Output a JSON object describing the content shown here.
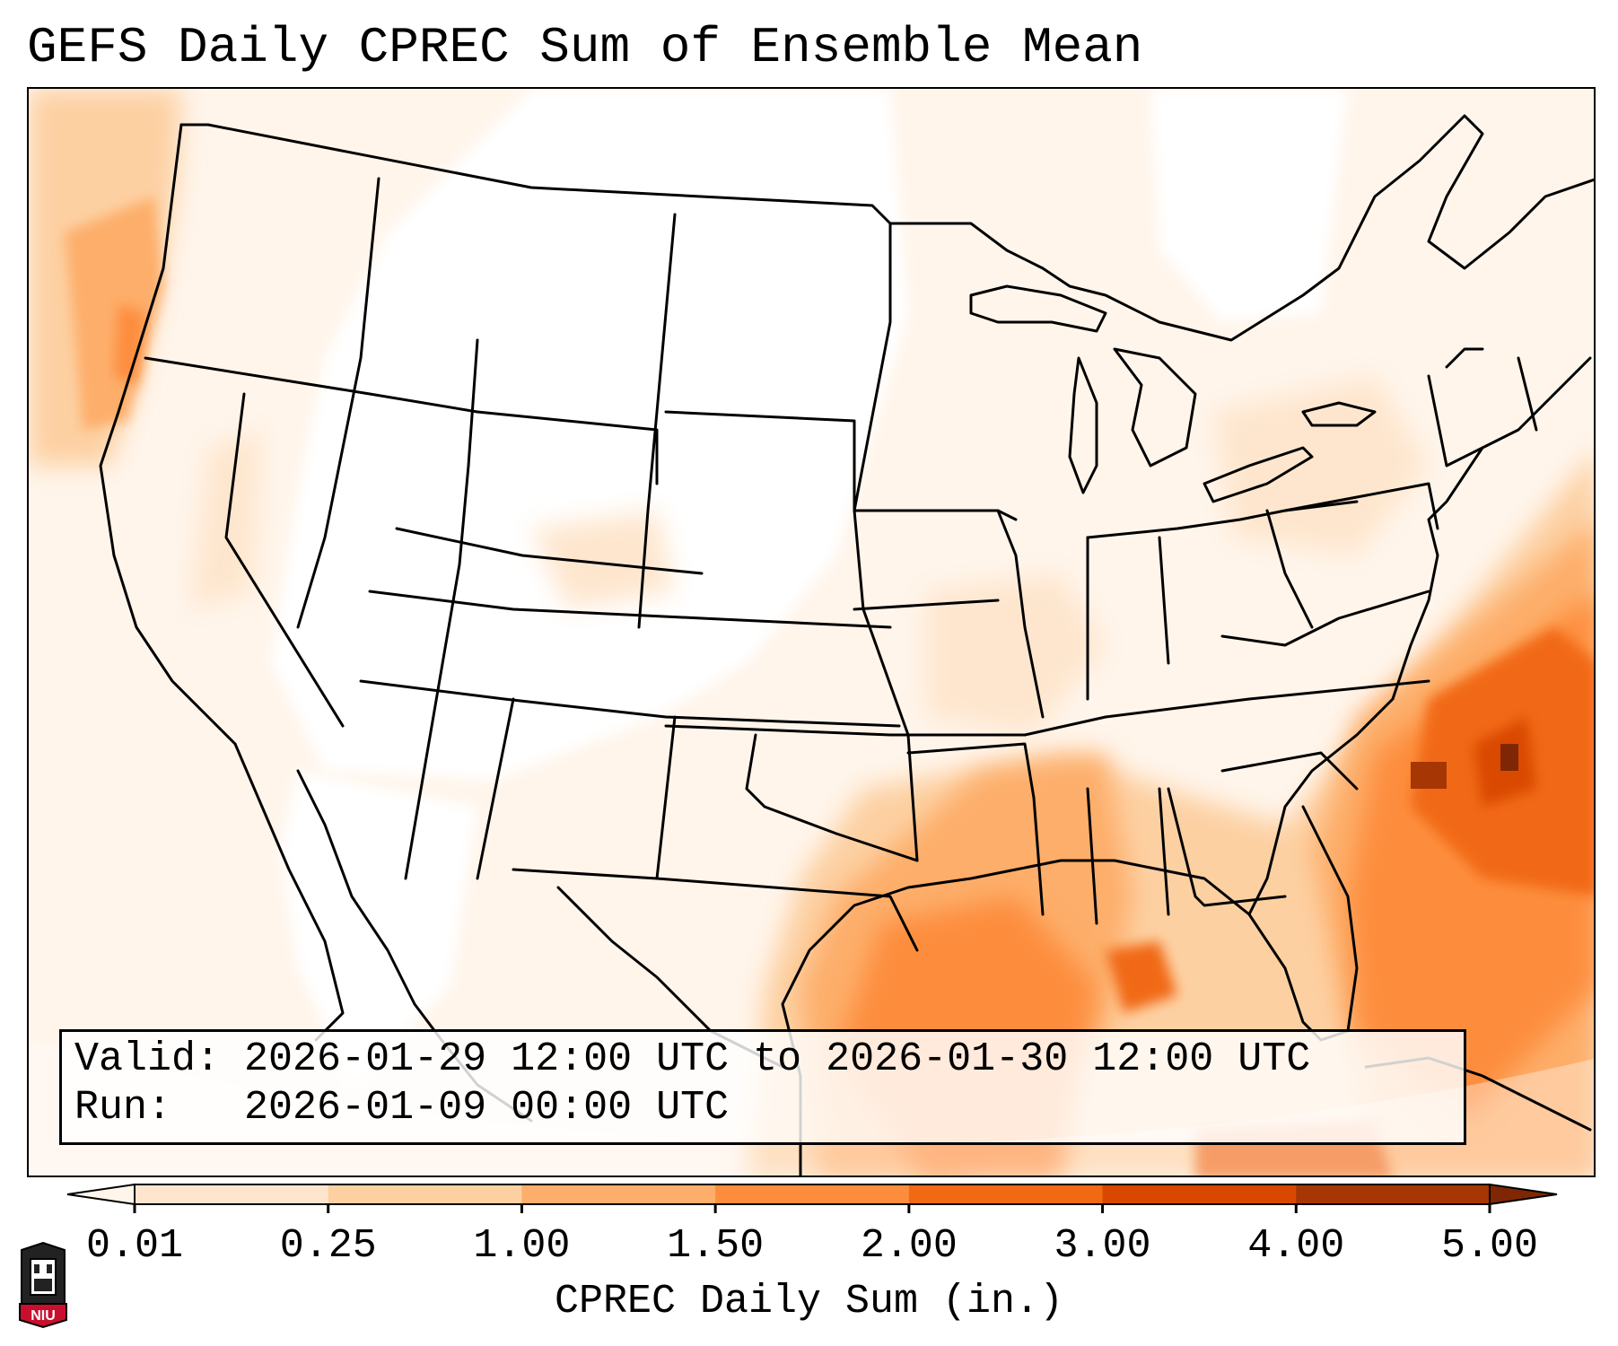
{
  "title": "GEFS Daily CPREC Sum of Ensemble Mean",
  "info_box": {
    "valid_label": "Valid:",
    "valid_value": "2026-01-29 12:00 UTC to 2026-01-30 12:00 UTC",
    "run_label": "Run:",
    "run_value": "2026-01-09 00:00 UTC"
  },
  "colorbar": {
    "label": "CPREC Daily Sum (in.)",
    "ticks": [
      "0.01",
      "0.25",
      "1.00",
      "1.50",
      "2.00",
      "3.00",
      "4.00",
      "5.00"
    ],
    "colors": [
      "#fff5eb",
      "#fee6ce",
      "#fdd0a2",
      "#fdae6b",
      "#fd8d3c",
      "#f16913",
      "#d94801",
      "#a63603",
      "#7f2704"
    ],
    "extend": "both"
  },
  "logo": {
    "text": "NIU"
  },
  "map": {
    "projection": "Lambert conformal, CONUS",
    "max_region": "Atlantic offshore of the Carolinas",
    "colors": {
      "border": "#000000",
      "background": "#ffffff"
    }
  }
}
